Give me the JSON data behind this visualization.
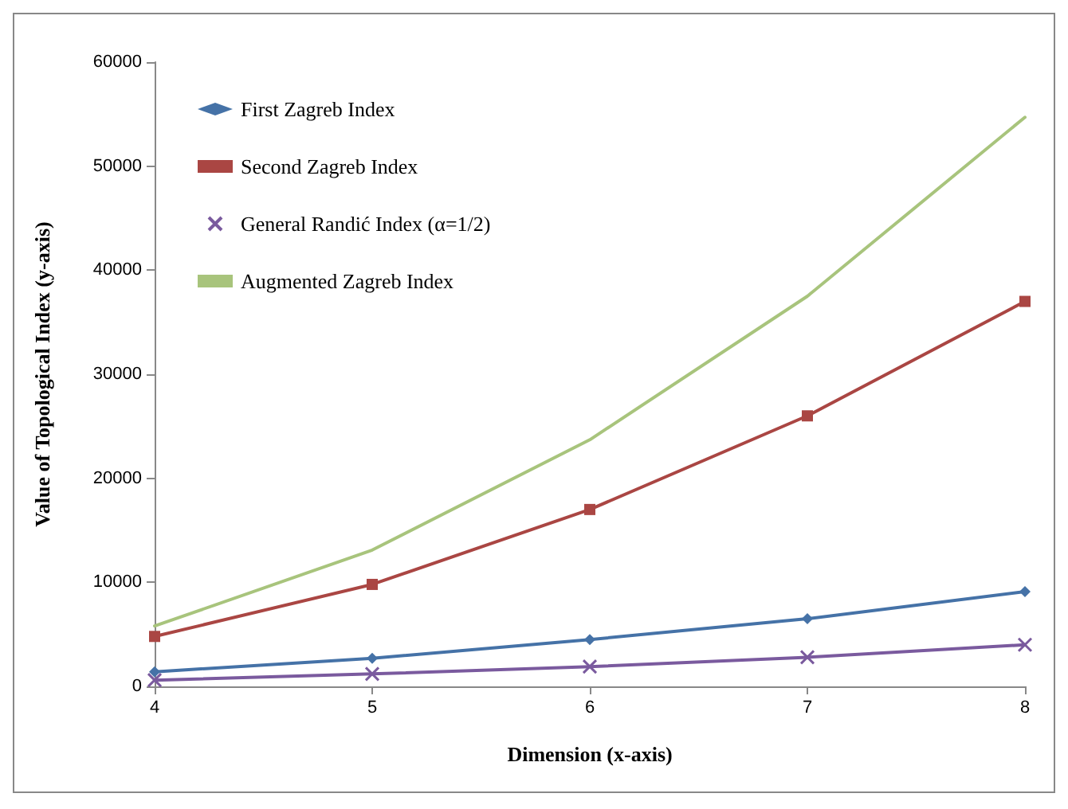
{
  "chart_data": {
    "type": "line",
    "xlabel": "Dimension (x-axis)",
    "ylabel": "Value of Topological Index (y-axis)",
    "categories": [
      "4",
      "5",
      "6",
      "7",
      "8"
    ],
    "series": [
      {
        "name": "First Zagreb Index",
        "color": "#4572a7",
        "marker": "diamond",
        "values": [
          1400,
          2700,
          4500,
          6500,
          9100
        ]
      },
      {
        "name": "Second Zagreb Index",
        "color": "#aa4643",
        "marker": "square",
        "values": [
          4800,
          9800,
          17000,
          26000,
          37000
        ]
      },
      {
        "name": "General Randić Index (α=1/2)",
        "color": "#7a5a9e",
        "marker": "cross",
        "values": [
          600,
          1200,
          1900,
          2800,
          4000
        ]
      },
      {
        "name": "Augmented Zagreb Index",
        "color": "#a8c47c",
        "marker": "none",
        "values": [
          5800,
          13100,
          23700,
          37500,
          54700
        ]
      }
    ],
    "ylim": [
      0,
      60000
    ],
    "yticks": [
      0,
      10000,
      20000,
      30000,
      40000,
      50000,
      60000
    ],
    "grid": false,
    "legend": "top left"
  }
}
